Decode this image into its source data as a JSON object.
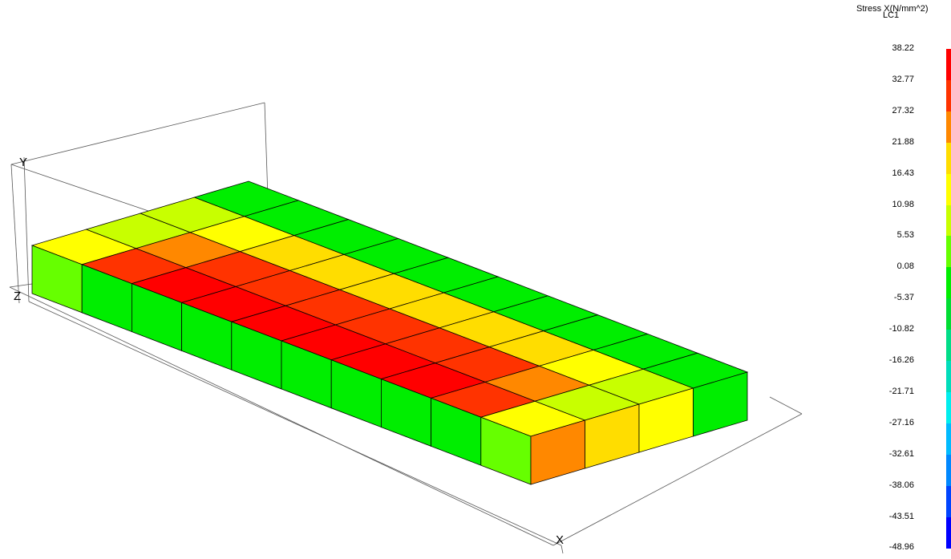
{
  "legend": {
    "title": "Stress X(N/mm^2)",
    "subtitle": "LC1",
    "ticks": [
      "38.22",
      "32.77",
      "27.32",
      "21.88",
      "16.43",
      "10.98",
      "5.53",
      "0.08",
      "-5.37",
      "-10.82",
      "-16.26",
      "-21.71",
      "-27.16",
      "-32.61",
      "-38.06",
      "-43.51",
      "-48.96"
    ],
    "colors": [
      "#ff0000",
      "#ff3300",
      "#ff8800",
      "#ffdd00",
      "#ffff00",
      "#c8ff00",
      "#66ff00",
      "#00ee00",
      "#00dd33",
      "#00dd88",
      "#00ddbb",
      "#00eeee",
      "#00bbff",
      "#0088ff",
      "#0044ff",
      "#0000ff"
    ]
  },
  "axes": {
    "x": "X",
    "y": "Y",
    "z": "Z"
  },
  "model": {
    "columns": 10,
    "rows": 4,
    "top_colors": [
      [
        "#ffff00",
        "#c8ff00",
        "#c8ff00",
        "#00ee00"
      ],
      [
        "#ff3300",
        "#ff8800",
        "#ffff00",
        "#00ee00"
      ],
      [
        "#ff0000",
        "#ff3300",
        "#ffdd00",
        "#00ee00"
      ],
      [
        "#ff0000",
        "#ff3300",
        "#ffdd00",
        "#00ee00"
      ],
      [
        "#ff0000",
        "#ff3300",
        "#ffdd00",
        "#00ee00"
      ],
      [
        "#ff0000",
        "#ff3300",
        "#ffdd00",
        "#00ee00"
      ],
      [
        "#ff0000",
        "#ff3300",
        "#ffdd00",
        "#00ee00"
      ],
      [
        "#ff0000",
        "#ff3300",
        "#ffdd00",
        "#00ee00"
      ],
      [
        "#ff3300",
        "#ff8800",
        "#ffff00",
        "#00ee00"
      ],
      [
        "#ffff00",
        "#c8ff00",
        "#c8ff00",
        "#00ee00"
      ]
    ],
    "front_colors": [
      "#66ff00",
      "#00ee00",
      "#00ee00",
      "#00ee00",
      "#00ee00",
      "#00ee00",
      "#00ee00",
      "#00ee00",
      "#00ee00",
      "#66ff00"
    ],
    "end_colors": [
      "#ff8800",
      "#ffdd00",
      "#ffff00",
      "#00ee00"
    ]
  }
}
